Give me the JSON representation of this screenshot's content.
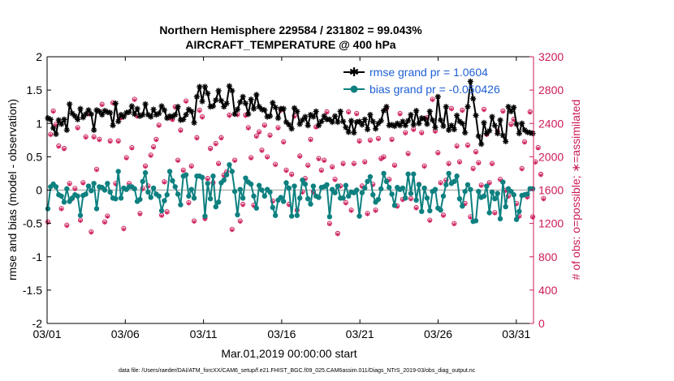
{
  "chart_data": {
    "type": "line",
    "title_line1": "Northern Hemisphere 229584 / 231802 = 99.043%",
    "title_line2": "AIRCRAFT_TEMPERATURE @ 400 hPa",
    "xlabel": "Mar.01,2019 00:00:00 start",
    "ylabel_left": "rmse and bias (model - observation)",
    "ylabel_right": "# of obs: o=possible; ∗=assimilated",
    "footnote": "data file: /Users/raeder/DAI/ATM_forcXX/CAM6_setup/f.e21.FHIST_BGC.f09_025.CAM6assim.011/Diags_NTrS_2019-03/obs_diag_output.nc",
    "x_tick_labels": [
      "03/01",
      "03/06",
      "03/11",
      "03/16",
      "03/21",
      "03/26",
      "03/31"
    ],
    "x_tick_days": [
      0,
      5,
      10,
      15,
      20,
      25,
      30
    ],
    "xlim_days": [
      0,
      31.1
    ],
    "ylim_left": [
      -2,
      2
    ],
    "y_ticks_left": [
      "-2",
      "-1.5",
      "-1",
      "-0.5",
      "0",
      "0.5",
      "1",
      "1.5",
      "2"
    ],
    "ylim_right": [
      0,
      3200
    ],
    "y_ticks_right": [
      "0",
      "400",
      "800",
      "1200",
      "1600",
      "2000",
      "2400",
      "2800",
      "3200"
    ],
    "colors": {
      "rmse": "#000000",
      "bias": "#0e8080",
      "obs": "#cc1a5a",
      "zero": "#b4b4b4",
      "legend_text": "#1f5fd6"
    },
    "legend": [
      {
        "label": "rmse grand pr = 1.0604"
      },
      {
        "label": "bias grand pr = -0.050426"
      }
    ],
    "rmse": [
      1.08,
      1.06,
      0.93,
      0.84,
      1.05,
      0.99,
      1.06,
      0.9,
      1.29,
      1.15,
      1.11,
      1.06,
      1.22,
      1.09,
      1.14,
      1.2,
      1.14,
      0.9,
      1.2,
      1.18,
      1.13,
      1.19,
      1.17,
      1.16,
      0.97,
      1.3,
      1.03,
      1.13,
      1.1,
      1.16,
      1.17,
      1.26,
      1.14,
      1.22,
      1.11,
      1.13,
      1.29,
      1.13,
      1.1,
      1.21,
      1.13,
      1.15,
      1.26,
      1.2,
      1.08,
      1.11,
      1.1,
      1.13,
      1.25,
      1.05,
      1.06,
      1.13,
      1.21,
      1.18,
      1.01,
      1.4,
      1.55,
      1.33,
      1.55,
      1.45,
      1.25,
      1.26,
      1.35,
      1.49,
      1.34,
      1.25,
      1.3,
      1.56,
      1.49,
      1.14,
      1.21,
      1.32,
      1.4,
      1.3,
      1.14,
      1.36,
      1.22,
      1.43,
      1.25,
      1.21,
      1.2,
      1.1,
      1.11,
      1.31,
      1.24,
      1.08,
      1.22,
      1.22,
      1.02,
      0.98,
      0.92,
      1.23,
      1.18,
      0.99,
      1.05,
      1.1,
      0.97,
      1.13,
      1.1,
      1.18,
      0.97,
      1.03,
      1.11,
      1.06,
      1.06,
      1.02,
      1.11,
      1.02,
      1.18,
      1.03,
      0.94,
      0.87,
      1.04,
      0.86,
      1.02,
      1.03,
      0.98,
      1.06,
      0.91,
      1.13,
      1.03,
      0.92,
      1.0,
      1.04,
      1.19,
      1.25,
      0.97,
      0.98,
      0.96,
      1.0,
      0.97,
      1.03,
      0.97,
      1.04,
      1.13,
      0.98,
      1.19,
      1.0,
      1.08,
      1.07,
      0.99,
      1.18,
      1.05,
      0.94,
      1.4,
      1.05,
      0.96,
      1.25,
      0.9,
      0.97,
      0.91,
      1.12,
      1.03,
      1.0,
      0.86,
      1.25,
      1.63,
      1.37,
      1.12,
      0.81,
      0.69,
      1.01,
      0.85,
      0.89,
      1.1,
      0.97,
      0.85,
      1.05,
      0.82,
      0.73,
      1.25,
      1.18,
      1.24,
      0.99,
      0.85,
      1.0,
      0.9,
      0.87,
      0.86,
      0.85
    ],
    "bias": [
      -0.28,
      0.05,
      0.09,
      0.05,
      -0.07,
      -0.09,
      -0.18,
      0.02,
      -0.17,
      -0.12,
      -0.07,
      -0.09,
      -0.38,
      -0.08,
      -0.06,
      0.06,
      -0.01,
      0.1,
      -0.28,
      0.05,
      0.04,
      0.0,
      0.1,
      -0.03,
      -0.12,
      -0.13,
      0.28,
      -0.12,
      0.03,
      0.01,
      0.05,
      0.05,
      0.02,
      -0.17,
      -0.14,
      0.13,
      0.26,
      -0.03,
      -0.11,
      0.03,
      -0.06,
      -0.09,
      -0.31,
      -0.16,
      -0.07,
      0.28,
      0.14,
      0.05,
      -0.06,
      -0.22,
      0.21,
      0.23,
      -0.09,
      0.01,
      -0.12,
      0.21,
      0.21,
      0.19,
      -0.39,
      0.1,
      -0.13,
      0.21,
      -0.25,
      -0.18,
      0.11,
      0.15,
      0.23,
      0.38,
      0.28,
      -0.02,
      -0.37,
      0.01,
      -0.12,
      0.18,
      0.12,
      0.09,
      -0.09,
      -0.27,
      0.07,
      0.0,
      -0.09,
      0.01,
      -0.03,
      -0.26,
      -0.38,
      -0.15,
      -0.11,
      -0.17,
      0.11,
      0.03,
      -0.39,
      0.06,
      -0.38,
      -0.12,
      0.15,
      0.09,
      -0.13,
      -0.21,
      0.06,
      -0.09,
      -0.11,
      0.04,
      0.05,
      0.08,
      -0.4,
      0.01,
      -0.04,
      0.06,
      -0.12,
      -0.12,
      0.07,
      -0.09,
      -0.03,
      -0.04,
      0.0,
      -0.39,
      -0.04,
      0.03,
      0.13,
      0.2,
      -0.07,
      -0.18,
      -0.14,
      0.02,
      0.25,
      0.13,
      0.04,
      -0.06,
      -0.23,
      0.04,
      0.01,
      0.03,
      -0.12,
      0.24,
      -0.05,
      0.24,
      -0.15,
      0.08,
      -0.32,
      0.03,
      -0.12,
      -0.31,
      -0.02,
      0.01,
      -0.27,
      -0.3,
      -0.09,
      0.08,
      0.25,
      0.1,
      0.13,
      0.21,
      -0.13,
      -0.24,
      -0.02,
      0.08,
      0.01,
      -0.47,
      -0.46,
      -0.02,
      -0.11,
      -0.09,
      0.06,
      -0.34,
      -0.03,
      -0.13,
      -0.05,
      -0.43,
      0.12,
      -0.25,
      0.02,
      -0.02,
      -0.07,
      -0.44,
      -0.32,
      -0.08,
      -0.07,
      -0.06,
      0.02,
      0.02
    ],
    "obs_possible": [
      1220,
      2270,
      2550,
      2390,
      2130,
      1380,
      2100,
      1180,
      1680,
      1500,
      1620,
      2350,
      1240,
      1690,
      2240,
      2520,
      1100,
      2240,
      1850,
      2210,
      2630,
      1220,
      1290,
      2190,
      2650,
      1680,
      2190,
      2470,
      1140,
      1990,
      1680,
      2110,
      2690,
      2490,
      1320,
      1620,
      1890,
      1650,
      2020,
      2120,
      2210,
      2380,
      1300,
      1700,
      1340,
      2470,
      2450,
      2600,
      1960,
      2320,
      1840,
      2670,
      1450,
      1890,
      1230,
      2230,
      2560,
      2480,
      1260,
      1740,
      2100,
      1690,
      2160,
      1920,
      2230,
      1780,
      1820,
      2500,
      1130,
      1960,
      2510,
      1230,
      1430,
      2500,
      2350,
      1990,
      1420,
      2250,
      2300,
      2080,
      2380,
      2000,
      2260,
      1470,
      1910,
      2350,
      2560,
      2180,
      1840,
      1430,
      1790,
      2490,
      1360,
      2010,
      1580,
      1740,
      1900,
      2210,
      1580,
      2360,
      1980,
      1840,
      1960,
      2540,
      1200,
      1880,
      1730,
      1080,
      1650,
      1920,
      1450,
      2540,
      1360,
      1920,
      2520,
      2190,
      1650,
      1940,
      1320,
      2200,
      1670,
      1360,
      2220,
      1980,
      2000,
      2580,
      1730,
      2210,
      1900,
      1410,
      2520,
      1490,
      2290,
      2040,
      1500,
      2330,
      1390,
      1670,
      2290,
      1890,
      2470,
      1240,
      2690,
      2310,
      2050,
      1690,
      1300,
      1720,
      1920,
      2580,
      1200,
      2130,
      1940,
      2560,
      1440,
      2140,
      1280,
      1860,
      2060,
      1930,
      1660,
      2570,
      2270,
      1690,
      1920,
      1330,
      2310,
      1730,
      2550,
      1600,
      1530,
      2390,
      2450,
      1440,
      1290,
      1860,
      2180,
      1520,
      2540,
      1280,
      1940,
      2110,
      1790,
      1500
    ],
    "obs_assimilated": [
      1210,
      2260,
      2540,
      2380,
      2120,
      1370,
      2090,
      1170,
      1670,
      1490,
      1610,
      2340,
      1230,
      1680,
      2230,
      2510,
      1090,
      2230,
      1840,
      2200,
      2620,
      1210,
      1280,
      2180,
      2640,
      1670,
      2180,
      2460,
      1130,
      1980,
      1670,
      2100,
      2680,
      2480,
      1310,
      1610,
      1880,
      1640,
      2010,
      2110,
      2200,
      2370,
      1290,
      1690,
      1330,
      2460,
      2440,
      2590,
      1950,
      2310,
      1830,
      2660,
      1440,
      1880,
      1220,
      2220,
      2550,
      2470,
      1250,
      1730,
      2090,
      1680,
      2150,
      1910,
      2220,
      1770,
      1810,
      2490,
      1120,
      1950,
      2500,
      1220,
      1420,
      2490,
      2340,
      1980,
      1410,
      2240,
      2290,
      2070,
      2370,
      1990,
      2250,
      1460,
      1900,
      2340,
      2550,
      2170,
      1830,
      1420,
      1780,
      2480,
      1350,
      2000,
      1570,
      1730,
      1890,
      2200,
      1570,
      2350,
      1970,
      1830,
      1950,
      2530,
      1190,
      1870,
      1720,
      1070,
      1640,
      1910,
      1440,
      2530,
      1350,
      1910,
      2510,
      2180,
      1640,
      1930,
      1310,
      2190,
      1660,
      1350,
      2210,
      1970,
      1990,
      2570,
      1720,
      2200,
      1890,
      1400,
      2510,
      1480,
      2280,
      2030,
      1490,
      2320,
      1380,
      1660,
      2280,
      1880,
      2460,
      1230,
      2680,
      2300,
      2040,
      1680,
      1290,
      1710,
      1910,
      2570,
      1190,
      2120,
      1930,
      2550,
      1430,
      2130,
      1270,
      1850,
      2050,
      1920,
      1650,
      2560,
      2260,
      1680,
      1910,
      1320,
      2300,
      1720,
      2540,
      1590,
      1520,
      2380,
      2440,
      1430,
      1280,
      1850,
      2170,
      1510,
      2530,
      1270,
      1930,
      2100,
      1780,
      1490
    ]
  }
}
